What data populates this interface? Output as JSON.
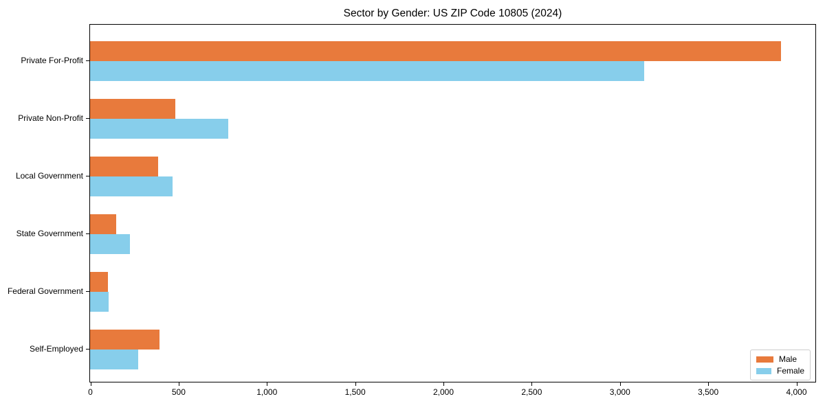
{
  "chart_data": {
    "type": "bar",
    "orientation": "horizontal",
    "title": "Sector by Gender: US ZIP Code 10805 (2024)",
    "categories": [
      "Private For-Profit",
      "Private Non-Profit",
      "Local Government",
      "State Government",
      "Federal Government",
      "Self-Employed"
    ],
    "series": [
      {
        "name": "Male",
        "color": "#e87a3c",
        "values": [
          3913,
          483,
          385,
          147,
          101,
          395
        ]
      },
      {
        "name": "Female",
        "color": "#87ceeb",
        "values": [
          3141,
          783,
          467,
          227,
          104,
          273
        ]
      }
    ],
    "xlabel": "",
    "ylabel": "",
    "xlim": [
      0,
      4000
    ],
    "x_ticks": [
      0,
      500,
      1000,
      1500,
      2000,
      2500,
      3000,
      3500,
      4000
    ],
    "x_tick_labels": [
      "0",
      "500",
      "1,000",
      "1,500",
      "2,000",
      "2,500",
      "3,000",
      "3,500",
      "4,000"
    ],
    "grid": false,
    "legend_position": "lower right",
    "background_color": "#ffffff",
    "axis_color": "#000000"
  }
}
